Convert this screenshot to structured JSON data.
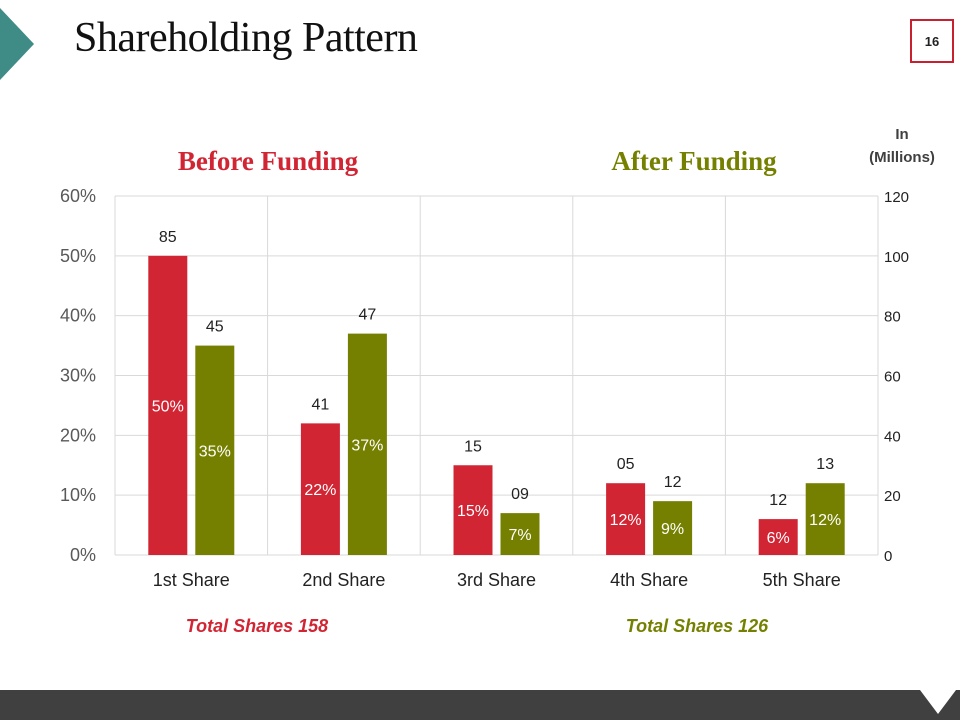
{
  "slide": {
    "title": "Shareholding Pattern",
    "page_number": "16"
  },
  "colors": {
    "before": "#d12534",
    "after": "#768000",
    "accent_teal": "#3f8b86",
    "footer": "#404040",
    "grid": "#d9d9d9"
  },
  "chart_data": {
    "type": "bar",
    "categories": [
      "1st Share",
      "2nd Share",
      "3rd Share",
      "4th Share",
      "5th Share"
    ],
    "series": [
      {
        "name": "Before Funding",
        "color": "#d12534",
        "percent_values": [
          50,
          22,
          15,
          12,
          6
        ],
        "percent_labels": [
          "50%",
          "22%",
          "15%",
          "12%",
          "6%"
        ],
        "million_labels": [
          "85",
          "41",
          "15",
          "05",
          "12"
        ]
      },
      {
        "name": "After Funding",
        "color": "#768000",
        "percent_values": [
          35,
          37,
          7,
          9,
          12
        ],
        "percent_labels": [
          "35%",
          "37%",
          "7%",
          "9%",
          "12%"
        ],
        "million_labels": [
          "45",
          "47",
          "09",
          "12",
          "13"
        ]
      }
    ],
    "left_axis": {
      "ylim": [
        0,
        60
      ],
      "ticks": [
        0,
        10,
        20,
        30,
        40,
        50,
        60
      ],
      "tick_labels": [
        "0%",
        "10%",
        "20%",
        "30%",
        "40%",
        "50%",
        "60%"
      ]
    },
    "right_axis": {
      "title_line1": "In",
      "title_line2": "(Millions)",
      "ylim": [
        0,
        120
      ],
      "ticks": [
        0,
        20,
        40,
        60,
        80,
        100,
        120
      ],
      "tick_labels": [
        "0",
        "20",
        "40",
        "60",
        "80",
        "100",
        "120"
      ]
    },
    "headers": {
      "before": "Before Funding",
      "after": "After Funding"
    },
    "totals": {
      "before": "Total  Shares 158",
      "after": "Total  Shares 126"
    },
    "grid": true
  }
}
